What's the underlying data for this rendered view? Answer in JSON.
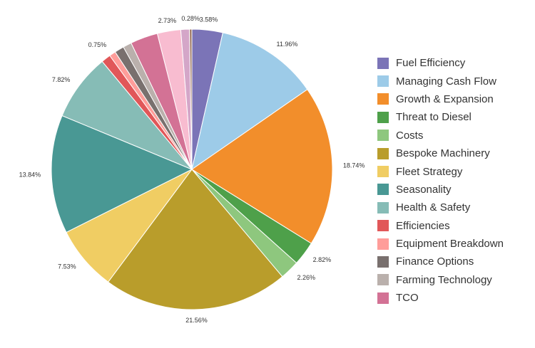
{
  "chart_data": {
    "type": "pie",
    "title": "",
    "legend_position": "right",
    "slices": [
      {
        "label": "Fuel Efficiency",
        "value": 3.58,
        "display": "3.58%",
        "color": "#7b74b7"
      },
      {
        "label": "Managing Cash Flow",
        "value": 11.96,
        "display": "11.96%",
        "color": "#9dcbe8"
      },
      {
        "label": "Growth & Expansion",
        "value": 18.74,
        "display": "18.74%",
        "color": "#f28e2b"
      },
      {
        "label": "Threat to Diesel",
        "value": 2.82,
        "display": "2.82%",
        "color": "#4ea04a"
      },
      {
        "label": "Costs",
        "value": 2.26,
        "display": "2.26%",
        "color": "#8ec77e"
      },
      {
        "label": "Bespoke Machinery",
        "value": 21.56,
        "display": "21.56%",
        "color": "#b99d2b"
      },
      {
        "label": "Fleet Strategy",
        "value": 7.53,
        "display": "7.53%",
        "color": "#f0cd63"
      },
      {
        "label": "Seasonality",
        "value": 13.84,
        "display": "13.84%",
        "color": "#499894"
      },
      {
        "label": "Health & Safety",
        "value": 7.82,
        "display": "7.82%",
        "color": "#86bcb6"
      },
      {
        "label": "Efficiencies",
        "value": 1.1,
        "display": "",
        "color": "#e15759"
      },
      {
        "label": "Equipment Breakdown",
        "value": 0.75,
        "display": "0.75%",
        "color": "#ff9d9a"
      },
      {
        "label": "Finance Options",
        "value": 1.1,
        "display": "",
        "color": "#79706e"
      },
      {
        "label": "Farming Technology",
        "value": 1.0,
        "display": "",
        "color": "#bab0ac"
      },
      {
        "label": "TCO",
        "value": 3.2,
        "display": "",
        "color": "#d37295"
      },
      {
        "label": "",
        "value": 2.73,
        "display": "2.73%",
        "color": "#f8bcd0"
      },
      {
        "label": "",
        "value": 1.0,
        "display": "",
        "color": "#d4a6c8"
      },
      {
        "label": "",
        "value": 0.28,
        "display": "0.28%",
        "color": "#9d7660"
      }
    ]
  }
}
